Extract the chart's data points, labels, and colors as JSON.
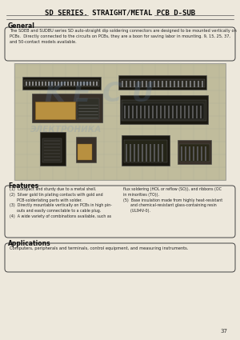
{
  "title": "SD SERIES. STRAIGHT/METAL PCB D-SUB",
  "bg_color": "#ede8dc",
  "section_general": "General",
  "general_text": "The SDEB and SUDBU series SD auto-straight dip soldering connectors are designed to be mounted vertically on\nPCBs.  Directly connected to the circuits on PCBs, they are a boon for saving labor in mounting. 9, 15, 25, 37,\nand 50-contact models available.",
  "section_features": "Features",
  "features_col1": "(1)  Compact and sturdy due to a metal shell.\n(2)  Silver gold tin plating contacts with gold and\n      PCB-solderlating parts with solder.\n(3)  Directly mountable vertically on PCBs in high pin-\n      outs and easily connectable to a cable plug.\n(4)  A wide variety of combinations available, such as",
  "features_col2": "flux soldering (HOL or reflow (SO)), and ribbons (OC\nin minorities (TO)).\n(5)  Base insulation made from highly heat-resistant\n      and chemical-resistant glass-containing resin\n      (UL94V-0).",
  "section_applications": "Applications",
  "applications_text": "Computers, peripherals and terminals, control equipment, and measuring instruments.",
  "page_number": "37",
  "watermark_color": "#6688bb",
  "watermark_alpha": 0.18,
  "grid_color": "#b0b09a",
  "grid_bg": "#c0bc9c",
  "connector_dark": "#1a1810",
  "connector_mid": "#383028",
  "connector_gold": "#b89040"
}
